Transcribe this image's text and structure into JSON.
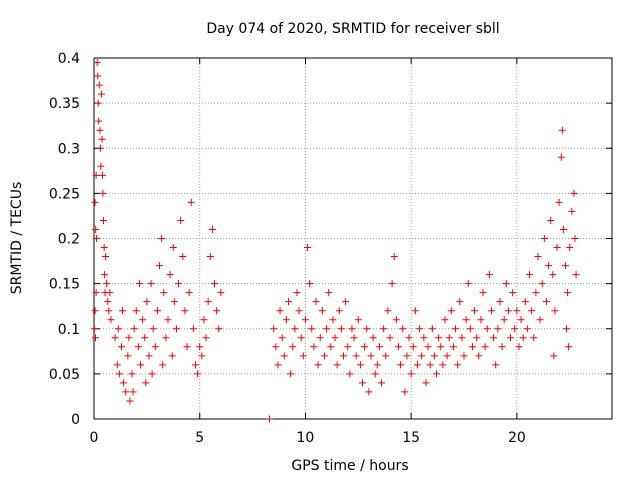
{
  "chart_data": {
    "type": "scatter",
    "title": "Day 074 of 2020, SRMTID for receiver sbll",
    "xlabel": "GPS time / hours",
    "ylabel": "SRMTID / TECUs",
    "xlim": [
      0,
      24.5
    ],
    "ylim": [
      0,
      0.4
    ],
    "xticks": [
      0,
      5,
      10,
      15,
      20
    ],
    "xtick_labels": [
      "0",
      "5",
      "10",
      "15",
      "20"
    ],
    "yticks": [
      0,
      0.05,
      0.1,
      0.15,
      0.2,
      0.25,
      0.3,
      0.35,
      0.4
    ],
    "ytick_labels": [
      "0",
      "0.05",
      "0.1",
      "0.15",
      "0.2",
      "0.25",
      "0.3",
      "0.35",
      "0.4"
    ],
    "grid": true,
    "marker": "+",
    "color": "#ff0000",
    "series": [
      {
        "name": "SRMTID",
        "points": [
          [
            0.05,
            0.24
          ],
          [
            0.08,
            0.21
          ],
          [
            0.1,
            0.27
          ],
          [
            0.12,
            0.2
          ],
          [
            0.15,
            0.395
          ],
          [
            0.18,
            0.38
          ],
          [
            0.2,
            0.35
          ],
          [
            0.22,
            0.33
          ],
          [
            0.25,
            0.37
          ],
          [
            0.28,
            0.32
          ],
          [
            0.3,
            0.3
          ],
          [
            0.32,
            0.28
          ],
          [
            0.35,
            0.36
          ],
          [
            0.38,
            0.31
          ],
          [
            0.4,
            0.27
          ],
          [
            0.42,
            0.25
          ],
          [
            0.45,
            0.22
          ],
          [
            0.48,
            0.19
          ],
          [
            0.5,
            0.16
          ],
          [
            0.52,
            0.14
          ],
          [
            0.55,
            0.18
          ],
          [
            0.6,
            0.15
          ],
          [
            0.65,
            0.13
          ],
          [
            0.7,
            0.12
          ],
          [
            0.75,
            0.14
          ],
          [
            0.8,
            0.11
          ],
          [
            0.02,
            0.1
          ],
          [
            0.05,
            0.12
          ],
          [
            0.07,
            0.09
          ],
          [
            0.1,
            0.14
          ],
          [
            1.0,
            0.09
          ],
          [
            1.1,
            0.06
          ],
          [
            1.2,
            0.05
          ],
          [
            1.3,
            0.08
          ],
          [
            1.4,
            0.04
          ],
          [
            1.5,
            0.03
          ],
          [
            1.6,
            0.07
          ],
          [
            1.7,
            0.02
          ],
          [
            1.8,
            0.05
          ],
          [
            1.9,
            0.1
          ],
          [
            2.0,
            0.12
          ],
          [
            2.1,
            0.08
          ],
          [
            2.2,
            0.06
          ],
          [
            2.3,
            0.11
          ],
          [
            2.4,
            0.09
          ],
          [
            2.5,
            0.13
          ],
          [
            2.6,
            0.07
          ],
          [
            2.7,
            0.15
          ],
          [
            2.8,
            0.1
          ],
          [
            2.9,
            0.08
          ],
          [
            3.0,
            0.12
          ],
          [
            3.1,
            0.17
          ],
          [
            3.2,
            0.2
          ],
          [
            3.3,
            0.14
          ],
          [
            3.4,
            0.09
          ],
          [
            3.5,
            0.11
          ],
          [
            3.6,
            0.16
          ],
          [
            3.7,
            0.07
          ],
          [
            3.8,
            0.13
          ],
          [
            3.9,
            0.1
          ],
          [
            4.0,
            0.15
          ],
          [
            4.1,
            0.22
          ],
          [
            4.2,
            0.18
          ],
          [
            4.3,
            0.12
          ],
          [
            4.4,
            0.08
          ],
          [
            4.5,
            0.14
          ],
          [
            4.6,
            0.24
          ],
          [
            4.7,
            0.1
          ],
          [
            4.8,
            0.06
          ],
          [
            4.9,
            0.05
          ],
          [
            5.0,
            0.08
          ],
          [
            5.1,
            0.07
          ],
          [
            5.2,
            0.11
          ],
          [
            5.3,
            0.09
          ],
          [
            5.4,
            0.13
          ],
          [
            5.5,
            0.18
          ],
          [
            5.6,
            0.21
          ],
          [
            5.7,
            0.15
          ],
          [
            5.8,
            0.12
          ],
          [
            5.9,
            0.1
          ],
          [
            6.0,
            0.14
          ],
          [
            1.15,
            0.1
          ],
          [
            1.35,
            0.12
          ],
          [
            1.65,
            0.09
          ],
          [
            1.85,
            0.03
          ],
          [
            2.15,
            0.15
          ],
          [
            2.45,
            0.04
          ],
          [
            2.75,
            0.05
          ],
          [
            3.25,
            0.06
          ],
          [
            3.75,
            0.19
          ],
          [
            8.3,
            0.0
          ],
          [
            8.5,
            0.1
          ],
          [
            8.6,
            0.08
          ],
          [
            8.7,
            0.06
          ],
          [
            8.8,
            0.12
          ],
          [
            8.9,
            0.09
          ],
          [
            9.0,
            0.07
          ],
          [
            9.1,
            0.11
          ],
          [
            9.2,
            0.13
          ],
          [
            9.3,
            0.05
          ],
          [
            9.4,
            0.08
          ],
          [
            9.5,
            0.1
          ],
          [
            9.6,
            0.14
          ],
          [
            9.7,
            0.12
          ],
          [
            9.8,
            0.09
          ],
          [
            9.9,
            0.07
          ],
          [
            10.0,
            0.11
          ],
          [
            10.1,
            0.19
          ],
          [
            10.2,
            0.15
          ],
          [
            10.3,
            0.1
          ],
          [
            10.4,
            0.08
          ],
          [
            10.5,
            0.13
          ],
          [
            10.6,
            0.06
          ],
          [
            10.7,
            0.09
          ],
          [
            10.8,
            0.12
          ],
          [
            10.9,
            0.07
          ],
          [
            11.0,
            0.1
          ],
          [
            11.1,
            0.14
          ],
          [
            11.2,
            0.08
          ],
          [
            11.3,
            0.11
          ],
          [
            11.4,
            0.09
          ],
          [
            11.5,
            0.06
          ],
          [
            11.6,
            0.12
          ],
          [
            11.7,
            0.1
          ],
          [
            11.8,
            0.07
          ],
          [
            11.9,
            0.13
          ],
          [
            12.0,
            0.08
          ],
          [
            12.1,
            0.05
          ],
          [
            12.2,
            0.1
          ],
          [
            12.3,
            0.09
          ],
          [
            12.4,
            0.07
          ],
          [
            12.5,
            0.11
          ],
          [
            12.6,
            0.06
          ],
          [
            12.7,
            0.04
          ],
          [
            12.8,
            0.08
          ],
          [
            12.9,
            0.1
          ],
          [
            13.0,
            0.03
          ],
          [
            13.1,
            0.07
          ],
          [
            13.2,
            0.09
          ],
          [
            13.3,
            0.05
          ],
          [
            13.4,
            0.06
          ],
          [
            13.5,
            0.08
          ],
          [
            13.6,
            0.04
          ],
          [
            13.7,
            0.1
          ],
          [
            13.8,
            0.07
          ],
          [
            13.9,
            0.12
          ],
          [
            14.0,
            0.09
          ],
          [
            14.1,
            0.15
          ],
          [
            14.2,
            0.18
          ],
          [
            14.3,
            0.11
          ],
          [
            14.4,
            0.08
          ],
          [
            14.5,
            0.06
          ],
          [
            14.6,
            0.1
          ],
          [
            14.7,
            0.03
          ],
          [
            14.8,
            0.07
          ],
          [
            14.9,
            0.09
          ],
          [
            15.0,
            0.05
          ],
          [
            15.1,
            0.08
          ],
          [
            15.2,
            0.12
          ],
          [
            15.3,
            0.06
          ],
          [
            15.4,
            0.1
          ],
          [
            15.5,
            0.07
          ],
          [
            15.6,
            0.09
          ],
          [
            15.7,
            0.04
          ],
          [
            15.8,
            0.08
          ],
          [
            15.9,
            0.06
          ],
          [
            16.0,
            0.1
          ],
          [
            16.1,
            0.07
          ],
          [
            16.2,
            0.05
          ],
          [
            16.3,
            0.09
          ],
          [
            16.4,
            0.08
          ],
          [
            16.5,
            0.06
          ],
          [
            16.6,
            0.11
          ],
          [
            16.7,
            0.07
          ],
          [
            16.8,
            0.09
          ],
          [
            16.9,
            0.12
          ],
          [
            17.0,
            0.08
          ],
          [
            17.1,
            0.1
          ],
          [
            17.2,
            0.06
          ],
          [
            17.3,
            0.13
          ],
          [
            17.4,
            0.09
          ],
          [
            17.5,
            0.07
          ],
          [
            17.6,
            0.11
          ],
          [
            17.7,
            0.15
          ],
          [
            17.8,
            0.1
          ],
          [
            17.9,
            0.08
          ],
          [
            18.0,
            0.12
          ],
          [
            18.1,
            0.09
          ],
          [
            18.2,
            0.07
          ],
          [
            18.3,
            0.11
          ],
          [
            18.4,
            0.14
          ],
          [
            18.5,
            0.08
          ],
          [
            18.6,
            0.1
          ],
          [
            18.7,
            0.16
          ],
          [
            18.8,
            0.12
          ],
          [
            18.9,
            0.09
          ],
          [
            19.0,
            0.06
          ],
          [
            19.1,
            0.1
          ],
          [
            19.2,
            0.13
          ],
          [
            19.3,
            0.08
          ],
          [
            19.4,
            0.11
          ],
          [
            19.5,
            0.15
          ],
          [
            19.6,
            0.12
          ],
          [
            19.7,
            0.09
          ],
          [
            19.8,
            0.14
          ],
          [
            19.9,
            0.1
          ],
          [
            20.0,
            0.12
          ],
          [
            20.1,
            0.08
          ],
          [
            20.2,
            0.11
          ],
          [
            20.3,
            0.09
          ],
          [
            20.4,
            0.13
          ],
          [
            20.5,
            0.1
          ],
          [
            20.6,
            0.16
          ],
          [
            20.7,
            0.12
          ],
          [
            20.8,
            0.09
          ],
          [
            20.9,
            0.14
          ],
          [
            21.0,
            0.18
          ],
          [
            21.1,
            0.11
          ],
          [
            21.2,
            0.15
          ],
          [
            21.3,
            0.2
          ],
          [
            21.4,
            0.13
          ],
          [
            21.5,
            0.17
          ],
          [
            21.6,
            0.22
          ],
          [
            21.7,
            0.16
          ],
          [
            21.8,
            0.12
          ],
          [
            21.9,
            0.19
          ],
          [
            22.0,
            0.24
          ],
          [
            22.1,
            0.29
          ],
          [
            22.15,
            0.32
          ],
          [
            22.2,
            0.21
          ],
          [
            22.3,
            0.17
          ],
          [
            22.4,
            0.14
          ],
          [
            22.5,
            0.19
          ],
          [
            22.6,
            0.23
          ],
          [
            22.7,
            0.25
          ],
          [
            22.75,
            0.2
          ],
          [
            22.8,
            0.16
          ],
          [
            22.35,
            0.1
          ],
          [
            22.45,
            0.08
          ],
          [
            21.75,
            0.07
          ]
        ]
      }
    ]
  }
}
